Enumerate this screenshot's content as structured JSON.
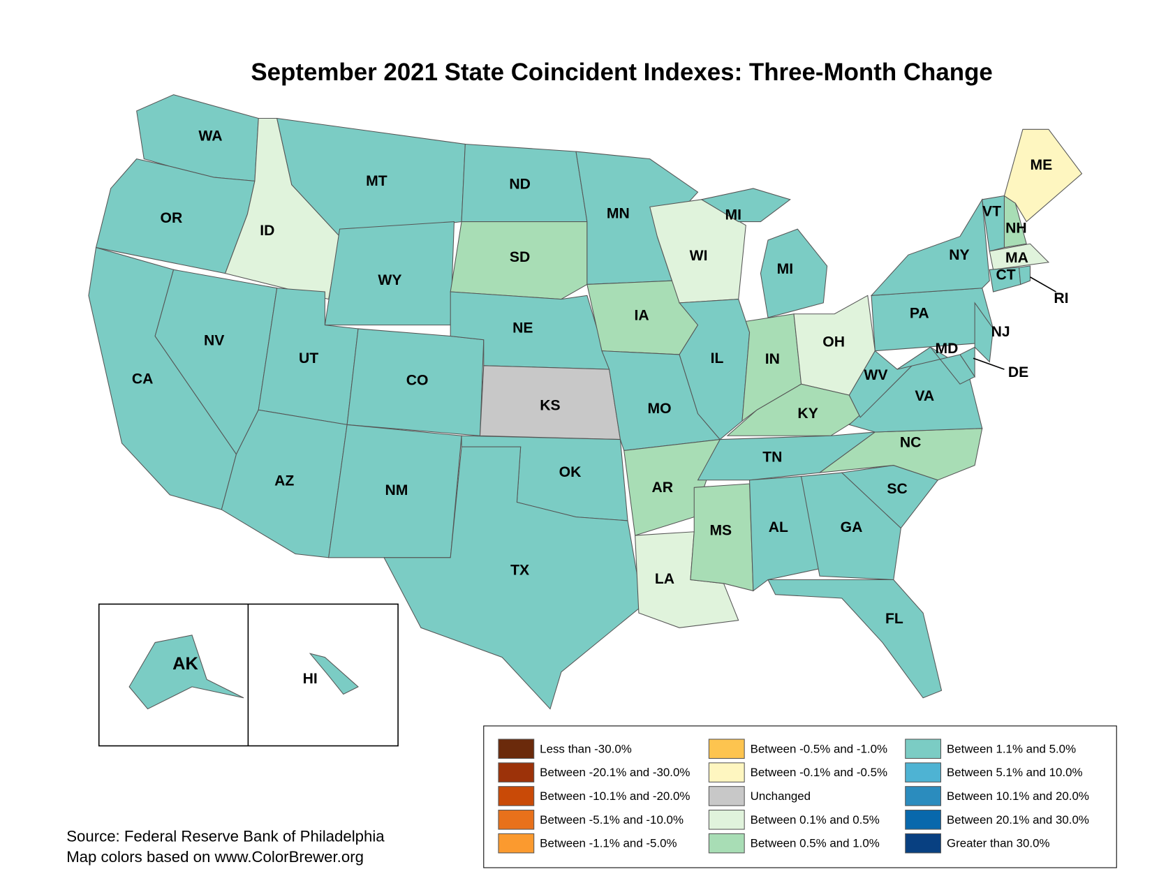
{
  "title": "September 2021 State Coincident Indexes: Three-Month Change",
  "states": [
    {
      "label": "WA",
      "category": 10
    },
    {
      "label": "OR",
      "category": 10
    },
    {
      "label": "CA",
      "category": 10
    },
    {
      "label": "NV",
      "category": 10
    },
    {
      "label": "ID",
      "category": 8
    },
    {
      "label": "MT",
      "category": 10
    },
    {
      "label": "WY",
      "category": 10
    },
    {
      "label": "UT",
      "category": 10
    },
    {
      "label": "CO",
      "category": 10
    },
    {
      "label": "AZ",
      "category": 10
    },
    {
      "label": "NM",
      "category": 10
    },
    {
      "label": "ND",
      "category": 10
    },
    {
      "label": "SD",
      "category": 9
    },
    {
      "label": "NE",
      "category": 10
    },
    {
      "label": "KS",
      "category": 7
    },
    {
      "label": "OK",
      "category": 10
    },
    {
      "label": "TX",
      "category": 10
    },
    {
      "label": "MN",
      "category": 10
    },
    {
      "label": "IA",
      "category": 9
    },
    {
      "label": "MO",
      "category": 10
    },
    {
      "label": "AR",
      "category": 9
    },
    {
      "label": "LA",
      "category": 8
    },
    {
      "label": "WI",
      "category": 8
    },
    {
      "label": "IL",
      "category": 10
    },
    {
      "label": "MI",
      "category": 10
    },
    {
      "label": "MI",
      "category": 10
    },
    {
      "label": "IN",
      "category": 9
    },
    {
      "label": "OH",
      "category": 8
    },
    {
      "label": "KY",
      "category": 9
    },
    {
      "label": "TN",
      "category": 10
    },
    {
      "label": "MS",
      "category": 9
    },
    {
      "label": "AL",
      "category": 10
    },
    {
      "label": "GA",
      "category": 10
    },
    {
      "label": "FL",
      "category": 10
    },
    {
      "label": "SC",
      "category": 10
    },
    {
      "label": "NC",
      "category": 9
    },
    {
      "label": "VA",
      "category": 10
    },
    {
      "label": "WV",
      "category": 10
    },
    {
      "label": "PA",
      "category": 10
    },
    {
      "label": "NY",
      "category": 10
    },
    {
      "label": "VT",
      "category": 10
    },
    {
      "label": "NH",
      "category": 9
    },
    {
      "label": "ME",
      "category": 6
    },
    {
      "label": "MA",
      "category": 8
    },
    {
      "label": "CT",
      "category": 10
    },
    {
      "label": "RI",
      "category": 10
    },
    {
      "label": "NJ",
      "category": 10
    },
    {
      "label": "DE",
      "category": 10
    },
    {
      "label": "MD",
      "category": 10
    },
    {
      "label": "AK",
      "category": 10
    },
    {
      "label": "HI",
      "category": 10
    }
  ],
  "legend": [
    {
      "label": "Less than -30.0%",
      "color": "#6b2a0b"
    },
    {
      "label": "Between -20.1% and -30.0%",
      "color": "#9c3209"
    },
    {
      "label": "Between -10.1% and -20.0%",
      "color": "#c94a07"
    },
    {
      "label": "Between -5.1% and -10.0%",
      "color": "#e8711b"
    },
    {
      "label": "Between -1.1% and -5.0%",
      "color": "#fb9a2f"
    },
    {
      "label": "Between -0.5% and -1.0%",
      "color": "#fdc44f"
    },
    {
      "label": "Between -0.1% and -0.5%",
      "color": "#fef6c0"
    },
    {
      "label": "Unchanged",
      "color": "#c8c8c8"
    },
    {
      "label": "Between 0.1% and 0.5%",
      "color": "#e0f3dc"
    },
    {
      "label": "Between 0.5% and 1.0%",
      "color": "#a8ddb5"
    },
    {
      "label": "Between 1.1% and 5.0%",
      "color": "#7bccc4"
    },
    {
      "label": "Between 5.1% and 10.0%",
      "color": "#4eb3d3"
    },
    {
      "label": "Between 10.1% and 20.0%",
      "color": "#2b8cbe"
    },
    {
      "label": "Between 20.1% and 30.0%",
      "color": "#0868ac"
    },
    {
      "label": "Greater than 30.0%",
      "color": "#084081"
    }
  ],
  "source": [
    "Source: Federal Reserve Bank of Philadelphia",
    "Map colors based on www.ColorBrewer.org"
  ]
}
